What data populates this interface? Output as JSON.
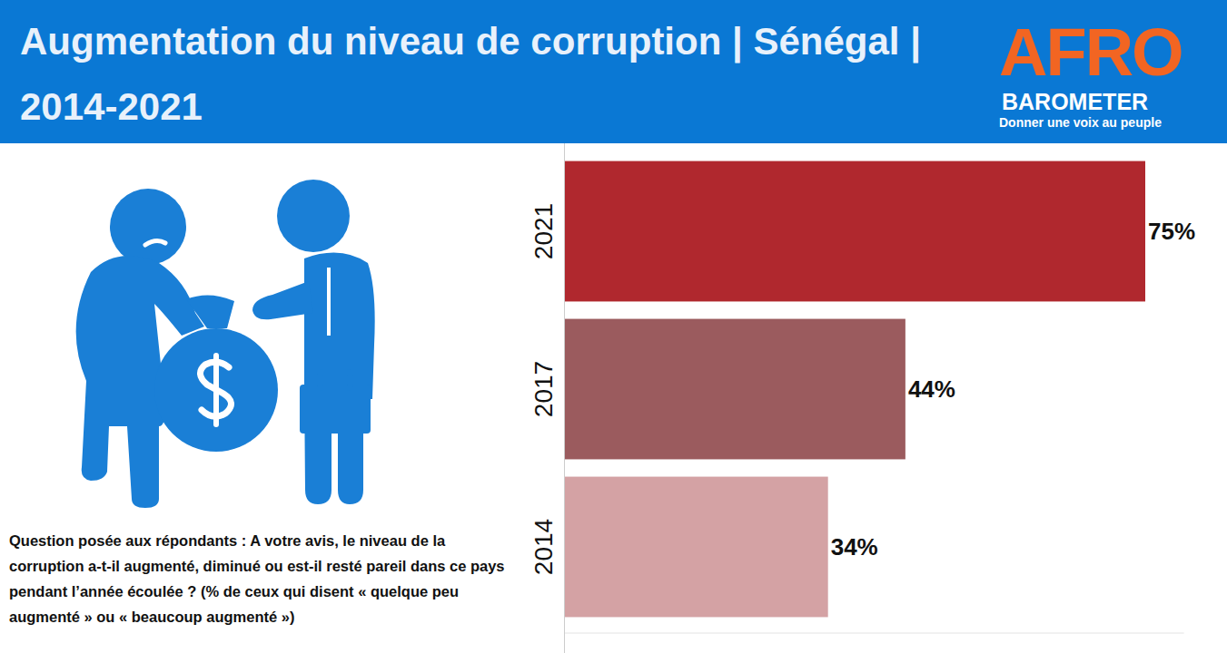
{
  "chart_data": {
    "type": "bar",
    "orientation": "horizontal",
    "title": "Augmentation du niveau de corruption | Sénégal | 2014-2021",
    "annotations": [
      "Question posée aux répondants : A votre avis, le niveau de la corruption a-t-il augmenté, diminué ou est-il resté pareil dans ce pays pendant l’année écoulée ? (% de ceux qui disent « quelque peu augmenté » ou « beaucoup augmenté »)"
    ],
    "categories": [
      "2021",
      "2017",
      "2014"
    ],
    "values": [
      75,
      44,
      34
    ],
    "value_labels": [
      "75%",
      "44%",
      "34%"
    ],
    "colors": [
      "#b0282e",
      "#9b5b5e",
      "#d4a2a4"
    ],
    "xlim": [
      0,
      80
    ],
    "data_labels": true,
    "tick_labels": false,
    "grid": false
  },
  "logo": {
    "name": "AFRO",
    "subname": "BAROMETER",
    "tagline": "Donner une voix au peuple"
  }
}
